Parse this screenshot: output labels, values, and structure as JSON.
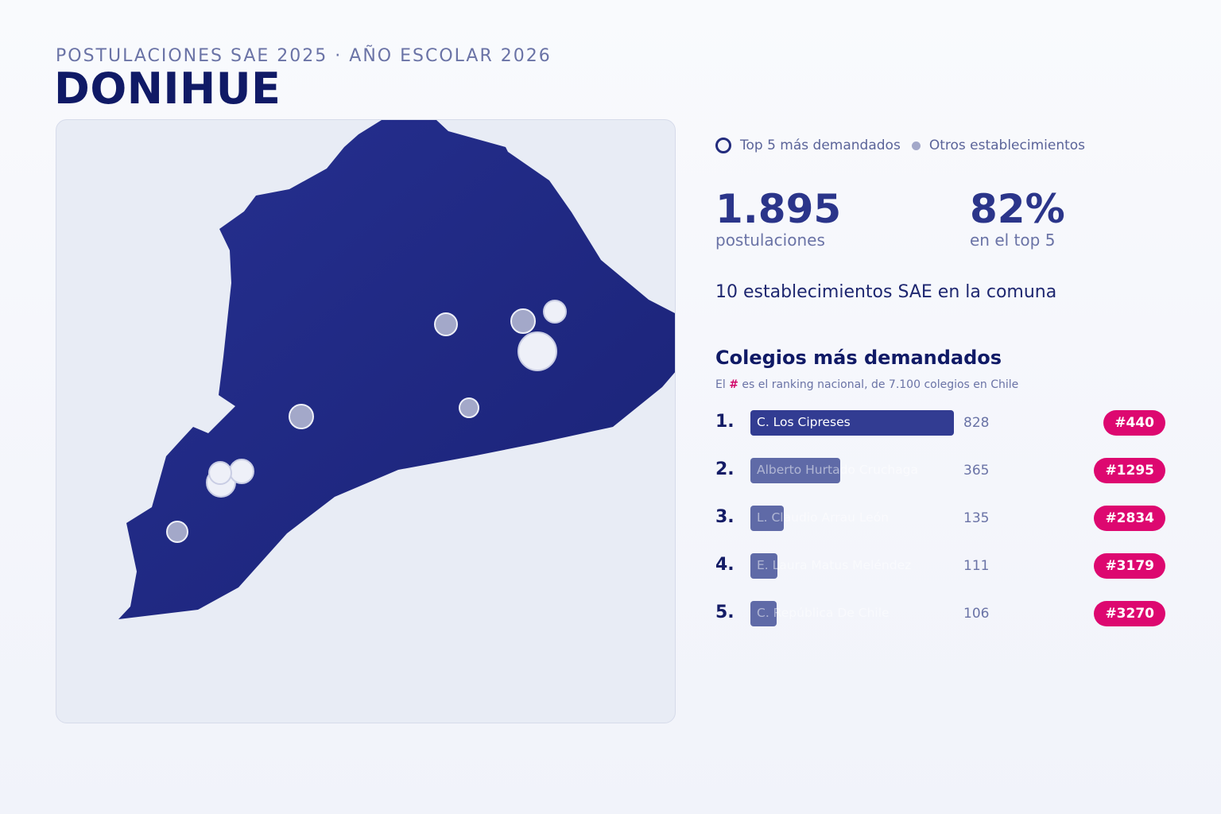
{
  "header": {
    "kicker": "POSTULACIONES SAE 2025 · AÑO ESCOLAR 2026",
    "title": "DONIHUE"
  },
  "legend": {
    "top5_label": "Top 5 más demandados",
    "others_label": "Otros establecimientos"
  },
  "stats": {
    "applications_value": "1.895",
    "applications_label": "postulaciones",
    "top5_share_value": "82%",
    "top5_share_label": "en el top 5"
  },
  "establishments_line": "10 establecimientos SAE en la comuna",
  "ranking": {
    "title": "Colegios más demandados",
    "note_prefix": "El",
    "note_hash": "#",
    "note_suffix": "es el ranking nacional, de 7.100 colegios en Chile",
    "max_value": 828,
    "schools": [
      {
        "pos": "1.",
        "name": "C. Los Cipreses",
        "applications": 828,
        "value_label": "828",
        "rank": "#440"
      },
      {
        "pos": "2.",
        "name": "Alberto Hurtado Cruchaga",
        "applications": 365,
        "value_label": "365",
        "rank": "#1295"
      },
      {
        "pos": "3.",
        "name": "L. Claudio Arrau León",
        "applications": 135,
        "value_label": "135",
        "rank": "#2834"
      },
      {
        "pos": "4.",
        "name": "E. Laura Matus Meléndez",
        "applications": 111,
        "value_label": "111",
        "rank": "#3179"
      },
      {
        "pos": "5.",
        "name": "C. República De Chile",
        "applications": 106,
        "value_label": "106",
        "rank": "#3270"
      }
    ]
  },
  "map": {
    "colors": {
      "territory": "#1e2782",
      "top5_marker": "#eef0f8",
      "other_marker": "#a3a8c9",
      "background": "#e8ecf5"
    },
    "markers": [
      {
        "kind": "top5"
      },
      {
        "kind": "top5"
      },
      {
        "kind": "top5"
      },
      {
        "kind": "top5"
      },
      {
        "kind": "top5"
      },
      {
        "kind": "other"
      },
      {
        "kind": "other"
      },
      {
        "kind": "other"
      },
      {
        "kind": "other"
      },
      {
        "kind": "other"
      }
    ]
  }
}
